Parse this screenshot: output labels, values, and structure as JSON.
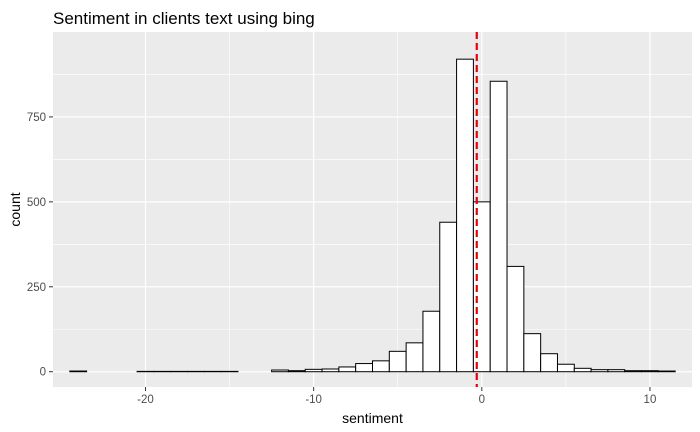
{
  "chart_data": {
    "type": "bar",
    "title": "Sentiment in clients text using bing",
    "xlabel": "sentiment",
    "ylabel": "count",
    "xlim": [
      -25.5,
      12.5
    ],
    "ylim": [
      -45,
      1000
    ],
    "x_ticks": [
      -20,
      -10,
      0,
      10
    ],
    "x_tick_labels": [
      "-20",
      "-10",
      "0",
      "10"
    ],
    "y_ticks": [
      0,
      250,
      500,
      750
    ],
    "y_tick_labels": [
      "0",
      "250",
      "500",
      "750"
    ],
    "grid": true,
    "bin_width": 1,
    "bin_centers": [
      -24,
      -23,
      -22,
      -21,
      -20,
      -19,
      -18,
      -17,
      -16,
      -15,
      -14,
      -13,
      -12,
      -11,
      -10,
      -9,
      -8,
      -7,
      -6,
      -5,
      -4,
      -3,
      -2,
      -1,
      0,
      1,
      2,
      3,
      4,
      5,
      6,
      7,
      8,
      9,
      10,
      11
    ],
    "values": [
      2,
      0,
      0,
      0,
      1,
      1,
      1,
      1,
      1,
      1,
      0,
      0,
      5,
      3,
      7,
      8,
      14,
      24,
      32,
      60,
      85,
      178,
      440,
      920,
      500,
      855,
      310,
      112,
      53,
      22,
      10,
      6,
      6,
      3,
      3,
      2
    ],
    "reference_line": {
      "x": -0.3,
      "style": "dashed",
      "color": "#e8000b"
    },
    "colors": {
      "panel": "#ebebeb",
      "grid_major": "#ffffff",
      "bar_fill": "#ffffff",
      "bar_stroke": "#000000"
    }
  }
}
